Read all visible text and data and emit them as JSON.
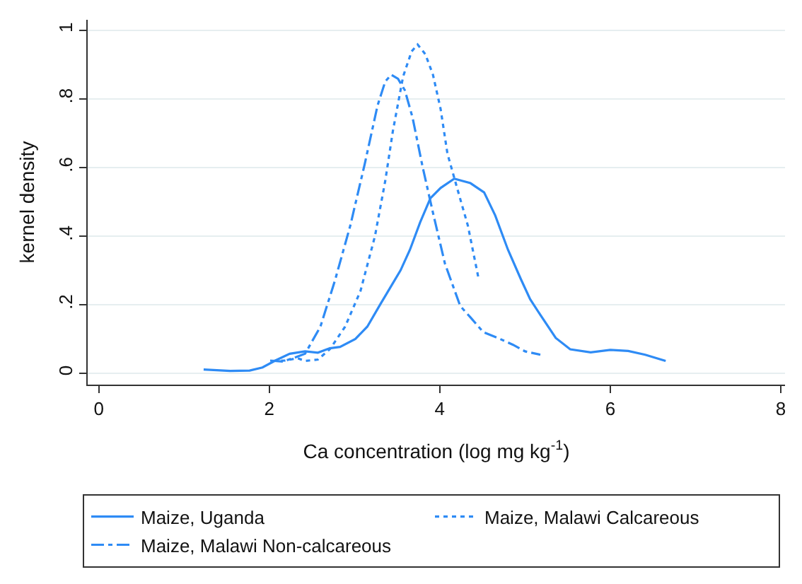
{
  "chart_data": {
    "type": "line",
    "xlabel": "Ca concentration (log mg kg$^{-1}$)",
    "ylabel": "kernel density",
    "xlim": [
      -0.13,
      8.05
    ],
    "xticks": [
      0,
      2,
      4,
      6,
      8
    ],
    "ylim": [
      -0.033,
      1.03
    ],
    "yticks": [
      0,
      {
        "value": 0.2,
        "label": ".2"
      },
      {
        "value": 0.4,
        "label": ".4"
      },
      {
        "value": 0.6,
        "label": ".6"
      },
      {
        "value": 0.8,
        "label": ".8"
      },
      1
    ],
    "grid": "y",
    "legend": "bottom",
    "marker": "none",
    "series": [
      {
        "name": "Maize, Uganda",
        "color": "#2e8bf5",
        "line_style": "solid",
        "x": [
          1.23,
          1.54,
          1.77,
          1.92,
          2.07,
          2.24,
          2.42,
          2.57,
          2.71,
          2.83,
          3.01,
          3.15,
          3.3,
          3.42,
          3.54,
          3.65,
          3.77,
          3.89,
          4.01,
          4.17,
          4.36,
          4.52,
          4.65,
          4.8,
          4.95,
          5.06,
          5.18,
          5.36,
          5.53,
          5.77,
          6.0,
          6.21,
          6.41,
          6.65
        ],
        "values": [
          0.011,
          0.007,
          0.008,
          0.017,
          0.037,
          0.057,
          0.064,
          0.06,
          0.073,
          0.077,
          0.1,
          0.136,
          0.2,
          0.25,
          0.3,
          0.36,
          0.44,
          0.51,
          0.54,
          0.567,
          0.554,
          0.527,
          0.46,
          0.36,
          0.275,
          0.216,
          0.17,
          0.103,
          0.07,
          0.061,
          0.068,
          0.065,
          0.054,
          0.036
        ]
      },
      {
        "name": "Maize, Malawi Calcareous",
        "color": "#2e8bf5",
        "line_style": "dotted",
        "x": [
          2.04,
          2.18,
          2.33,
          2.42,
          2.57,
          2.71,
          2.89,
          3.07,
          3.24,
          3.36,
          3.45,
          3.57,
          3.67,
          3.74,
          3.83,
          3.92,
          4.01,
          4.09,
          4.21,
          4.33,
          4.46
        ],
        "values": [
          0.036,
          0.037,
          0.044,
          0.036,
          0.04,
          0.07,
          0.136,
          0.24,
          0.4,
          0.56,
          0.706,
          0.865,
          0.938,
          0.958,
          0.93,
          0.87,
          0.77,
          0.64,
          0.534,
          0.43,
          0.27
        ]
      },
      {
        "name": "Maize, Malawi Non-calcareous",
        "color": "#2e8bf5",
        "line_style": "dashdot",
        "x": [
          2.01,
          2.16,
          2.3,
          2.42,
          2.6,
          2.77,
          2.95,
          3.12,
          3.27,
          3.36,
          3.43,
          3.51,
          3.59,
          3.68,
          3.8,
          3.92,
          4.06,
          4.24,
          4.36,
          4.51,
          4.68,
          4.86,
          5.0,
          5.18
        ],
        "values": [
          0.037,
          0.034,
          0.046,
          0.057,
          0.136,
          0.27,
          0.43,
          0.61,
          0.78,
          0.85,
          0.87,
          0.858,
          0.825,
          0.746,
          0.6,
          0.468,
          0.32,
          0.196,
          0.163,
          0.12,
          0.103,
          0.083,
          0.064,
          0.054
        ]
      }
    ]
  }
}
